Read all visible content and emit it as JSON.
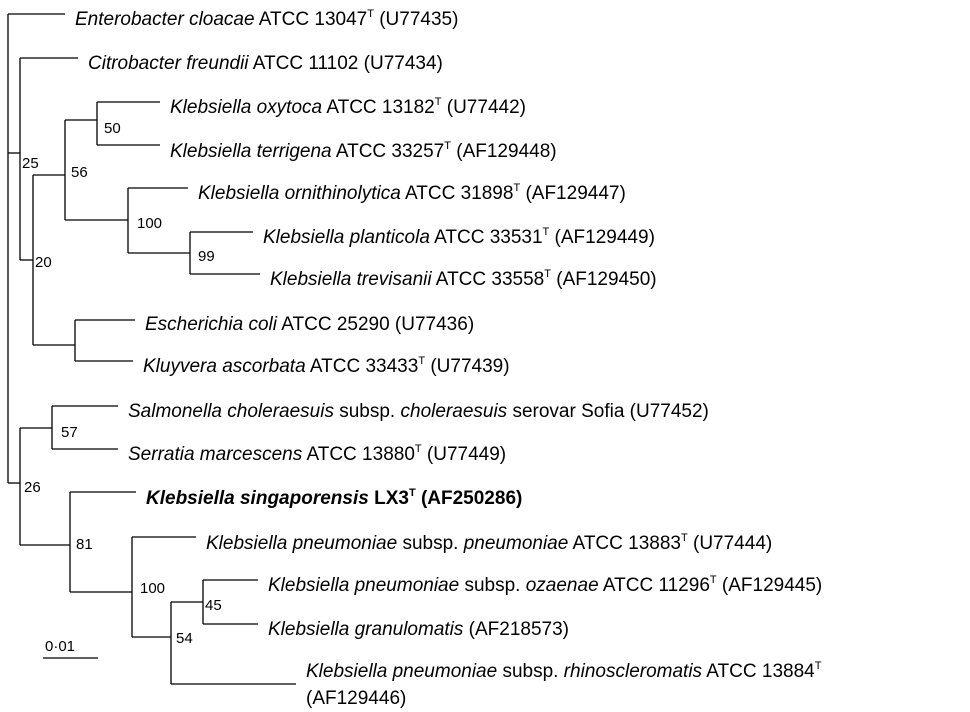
{
  "taxa": [
    {
      "id": "t1",
      "parts": [
        {
          "t": "Enterobacter cloacae",
          "i": true
        },
        {
          "t": " ATCC 13047"
        },
        {
          "t": "T",
          "sup": true
        },
        {
          "t": " (U77435)"
        }
      ]
    },
    {
      "id": "t2",
      "parts": [
        {
          "t": "Citrobacter freundii",
          "i": true
        },
        {
          "t": " ATCC 11102 (U77434)"
        }
      ]
    },
    {
      "id": "t3",
      "parts": [
        {
          "t": "Klebsiella oxytoca",
          "i": true
        },
        {
          "t": " ATCC 13182"
        },
        {
          "t": "T",
          "sup": true
        },
        {
          "t": " (U77442)"
        }
      ]
    },
    {
      "id": "t4",
      "parts": [
        {
          "t": "Klebsiella terrigena",
          "i": true
        },
        {
          "t": " ATCC 33257"
        },
        {
          "t": "T",
          "sup": true
        },
        {
          "t": " (AF129448)"
        }
      ]
    },
    {
      "id": "t5",
      "parts": [
        {
          "t": "Klebsiella ornithinolytica",
          "i": true
        },
        {
          "t": " ATCC 31898"
        },
        {
          "t": "T",
          "sup": true
        },
        {
          "t": " (AF129447)"
        }
      ]
    },
    {
      "id": "t6",
      "parts": [
        {
          "t": "Klebsiella planticola",
          "i": true
        },
        {
          "t": " ATCC 33531"
        },
        {
          "t": "T",
          "sup": true
        },
        {
          "t": " (AF129449)"
        }
      ]
    },
    {
      "id": "t7",
      "parts": [
        {
          "t": "Klebsiella trevisanii",
          "i": true
        },
        {
          "t": " ATCC 33558"
        },
        {
          "t": "T",
          "sup": true
        },
        {
          "t": " (AF129450)"
        }
      ]
    },
    {
      "id": "t8",
      "parts": [
        {
          "t": "Escherichia coli",
          "i": true
        },
        {
          "t": " ATCC 25290 (U77436)"
        }
      ]
    },
    {
      "id": "t9",
      "parts": [
        {
          "t": "Kluyvera ascorbata",
          "i": true
        },
        {
          "t": " ATCC 33433"
        },
        {
          "t": "T",
          "sup": true
        },
        {
          "t": " (U77439)"
        }
      ]
    },
    {
      "id": "t10",
      "parts": [
        {
          "t": "Salmonella choleraesuis",
          "i": true
        },
        {
          "t": " subsp. "
        },
        {
          "t": "choleraesuis",
          "i": true
        },
        {
          "t": " serovar Sofia (U77452)"
        }
      ]
    },
    {
      "id": "t11",
      "parts": [
        {
          "t": "Serratia marcescens",
          "i": true
        },
        {
          "t": " ATCC 13880"
        },
        {
          "t": "T",
          "sup": true
        },
        {
          "t": " (U77449)"
        }
      ]
    },
    {
      "id": "t12",
      "bold": true,
      "parts": [
        {
          "t": "Klebsiella singaporensis",
          "i": true
        },
        {
          "t": " LX3"
        },
        {
          "t": "T",
          "sup": true
        },
        {
          "t": " (AF250286)"
        }
      ]
    },
    {
      "id": "t13",
      "parts": [
        {
          "t": "Klebsiella pneumoniae",
          "i": true
        },
        {
          "t": " subsp. "
        },
        {
          "t": "pneumoniae",
          "i": true
        },
        {
          "t": " ATCC 13883"
        },
        {
          "t": "T",
          "sup": true
        },
        {
          "t": " (U77444)"
        }
      ]
    },
    {
      "id": "t14",
      "parts": [
        {
          "t": "Klebsiella pneumoniae",
          "i": true
        },
        {
          "t": " subsp. "
        },
        {
          "t": "ozaenae",
          "i": true
        },
        {
          "t": " ATCC 11296"
        },
        {
          "t": "T",
          "sup": true
        },
        {
          "t": " (AF129445)"
        }
      ]
    },
    {
      "id": "t15",
      "parts": [
        {
          "t": "Klebsiella granulomatis",
          "i": true
        },
        {
          "t": " (AF218573)"
        }
      ]
    },
    {
      "id": "t16",
      "parts": [
        {
          "t": "Klebsiella pneumoniae",
          "i": true
        },
        {
          "t": " subsp. "
        },
        {
          "t": "rhinoscleromatis",
          "i": true
        },
        {
          "t": " ATCC 13884"
        },
        {
          "t": "T",
          "sup": true
        }
      ],
      "line2": "(AF129446)"
    }
  ],
  "support_values": [
    "25",
    "20",
    "56",
    "50",
    "100",
    "99",
    "57",
    "26",
    "81",
    "100",
    "54",
    "45"
  ],
  "scale_bar": {
    "label": "0·01",
    "length": 0.01
  }
}
